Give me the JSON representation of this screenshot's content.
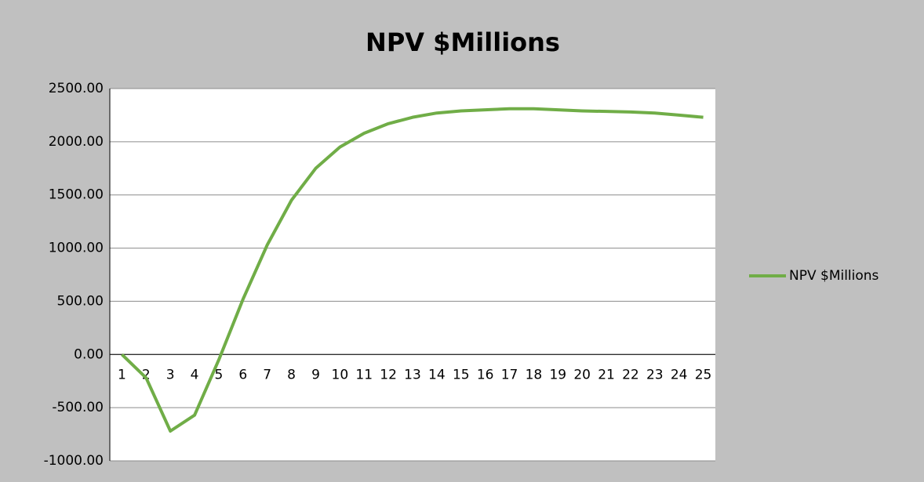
{
  "chart_data": {
    "type": "line",
    "title": "NPV $Millions",
    "categories": [
      "1",
      "2",
      "3",
      "4",
      "5",
      "6",
      "7",
      "8",
      "9",
      "10",
      "11",
      "12",
      "13",
      "14",
      "15",
      "16",
      "17",
      "18",
      "19",
      "20",
      "21",
      "22",
      "23",
      "24",
      "25"
    ],
    "series": [
      {
        "name": "NPV $Millions",
        "color": "#70ad47",
        "values": [
          0,
          -220,
          -720,
          -570,
          -50,
          520,
          1030,
          1450,
          1750,
          1950,
          2080,
          2170,
          2230,
          2270,
          2290,
          2300,
          2310,
          2310,
          2300,
          2290,
          2285,
          2280,
          2270,
          2250,
          2230
        ]
      }
    ],
    "ylim": [
      -1000,
      2500
    ],
    "yticks": [
      {
        "value": -1000,
        "label": "-1000.00"
      },
      {
        "value": -500,
        "label": "-500.00"
      },
      {
        "value": 0,
        "label": "0.00"
      },
      {
        "value": 500,
        "label": "500.00"
      },
      {
        "value": 1000,
        "label": "1000.00"
      },
      {
        "value": 1500,
        "label": "1500.00"
      },
      {
        "value": 2000,
        "label": "2000.00"
      },
      {
        "value": 2500,
        "label": "2500.00"
      }
    ],
    "grid": true,
    "legend": "right"
  }
}
